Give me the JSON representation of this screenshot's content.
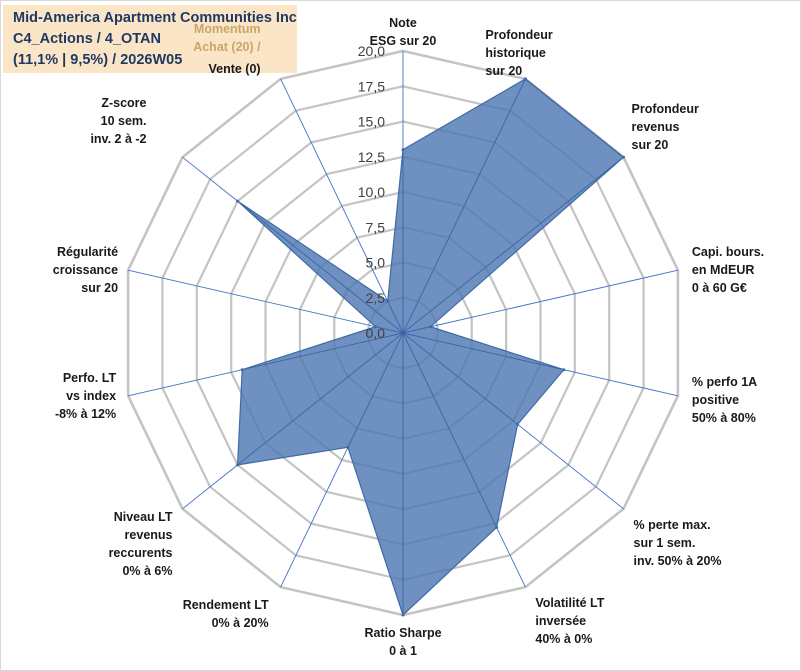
{
  "title_box": {
    "line1": "Mid-America Apartment Communities Inc",
    "line2": "C4_Actions / 4_OTAN",
    "line3": "(11,1% | 9,5%) / 2026W05"
  },
  "colors": {
    "fill": "#4e79b5",
    "stroke": "#3f6aa3",
    "grid": "#c4c4c4",
    "spoke": "#4472c4",
    "title_bg": "#fbe5c7",
    "momentum": "#c9a66b"
  },
  "chart_data": {
    "type": "radar",
    "rmax": 20,
    "rticks": [
      "0,0",
      "2,5",
      "5,0",
      "7,5",
      "10,0",
      "12,5",
      "15,0",
      "17,5",
      "20,0"
    ],
    "axes": [
      {
        "label": [
          "Note",
          "ESG sur 20"
        ],
        "value": 13.0
      },
      {
        "label": [
          "Profondeur",
          "historique",
          "sur 20"
        ],
        "value": 20.0
      },
      {
        "label": [
          "Profondeur",
          "revenus",
          "sur 20"
        ],
        "value": 20.0
      },
      {
        "label": [
          "Capi. bours.",
          "en MdEUR",
          "0 à 60 G€"
        ],
        "value": 2.0
      },
      {
        "label": [
          "% perfo 1A",
          "positive",
          "50% à 80%"
        ],
        "value": 11.7
      },
      {
        "label": [
          "% perte max.",
          "sur 1 sem.",
          "inv. 50% à 20%"
        ],
        "value": 10.4
      },
      {
        "label": [
          "Volatilité LT",
          "inversée",
          "40% à 0%"
        ],
        "value": 15.3
      },
      {
        "label": [
          "Ratio Sharpe",
          "0 à 1"
        ],
        "value": 20.0
      },
      {
        "label": [
          "Rendement LT",
          "0% à 20%"
        ],
        "value": 9.0
      },
      {
        "label": [
          "Niveau LT",
          "revenus",
          "reccurents",
          "0% à 6%"
        ],
        "value": 15.0
      },
      {
        "label": [
          "Perfo. LT",
          "vs index",
          "-8% à 12%"
        ],
        "value": 11.7
      },
      {
        "label": [
          "Régularité",
          "croissance",
          "sur 20"
        ],
        "value": 2.0
      },
      {
        "label": [
          "Z-score",
          "10 sem.",
          "inv. 2 à -2"
        ],
        "value": 15.0
      },
      {
        "label": [
          "Vente (0)"
        ],
        "value": 2.5
      }
    ],
    "momentum_label": [
      "Momentum",
      "Achat (20) /"
    ]
  }
}
